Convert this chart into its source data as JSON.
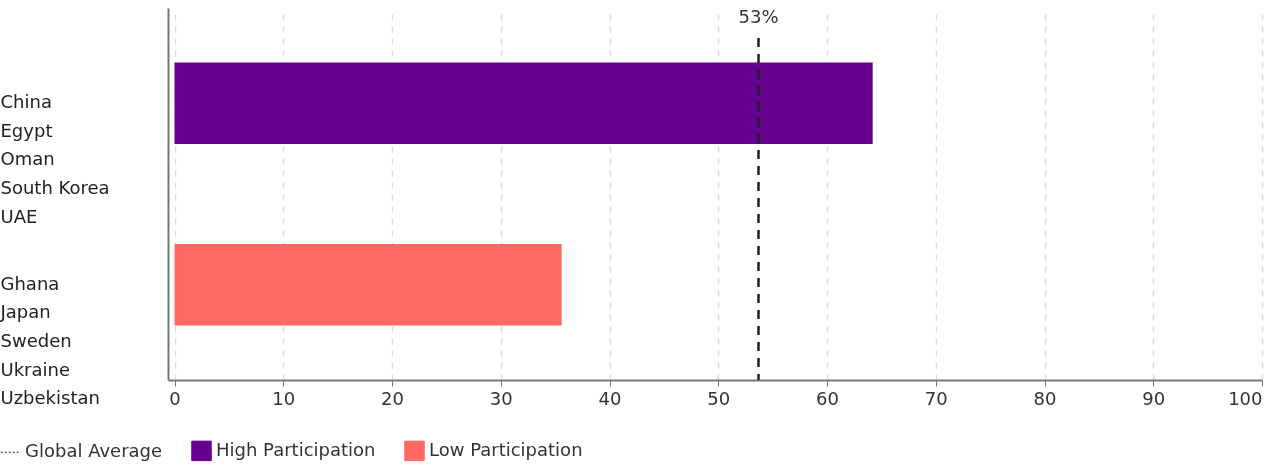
{
  "chart_data": {
    "type": "bar",
    "orientation": "horizontal",
    "categories": [
      "China\nEgypt\nOman\nSouth Korea\nUAE",
      "Ghana\nJapan\nSweden\nUkraine\nUzbekistan"
    ],
    "series": [
      {
        "name": "High Participation",
        "color": "#660091",
        "values": [
          64.2,
          null
        ]
      },
      {
        "name": "Low Participation",
        "color": "#ff6b64",
        "values": [
          null,
          35.6
        ]
      }
    ],
    "xlim": [
      -0.6,
      100
    ],
    "xticks": [
      0,
      10,
      20,
      30,
      40,
      50,
      60,
      70,
      80,
      90,
      100
    ],
    "grid": "x",
    "legend": "bottom",
    "ref_lines": [
      {
        "axis": "x",
        "value": 53.7,
        "label": "Global Average",
        "color": "#222222",
        "line_style": "dashed"
      }
    ],
    "annotations": [
      "53%"
    ]
  }
}
